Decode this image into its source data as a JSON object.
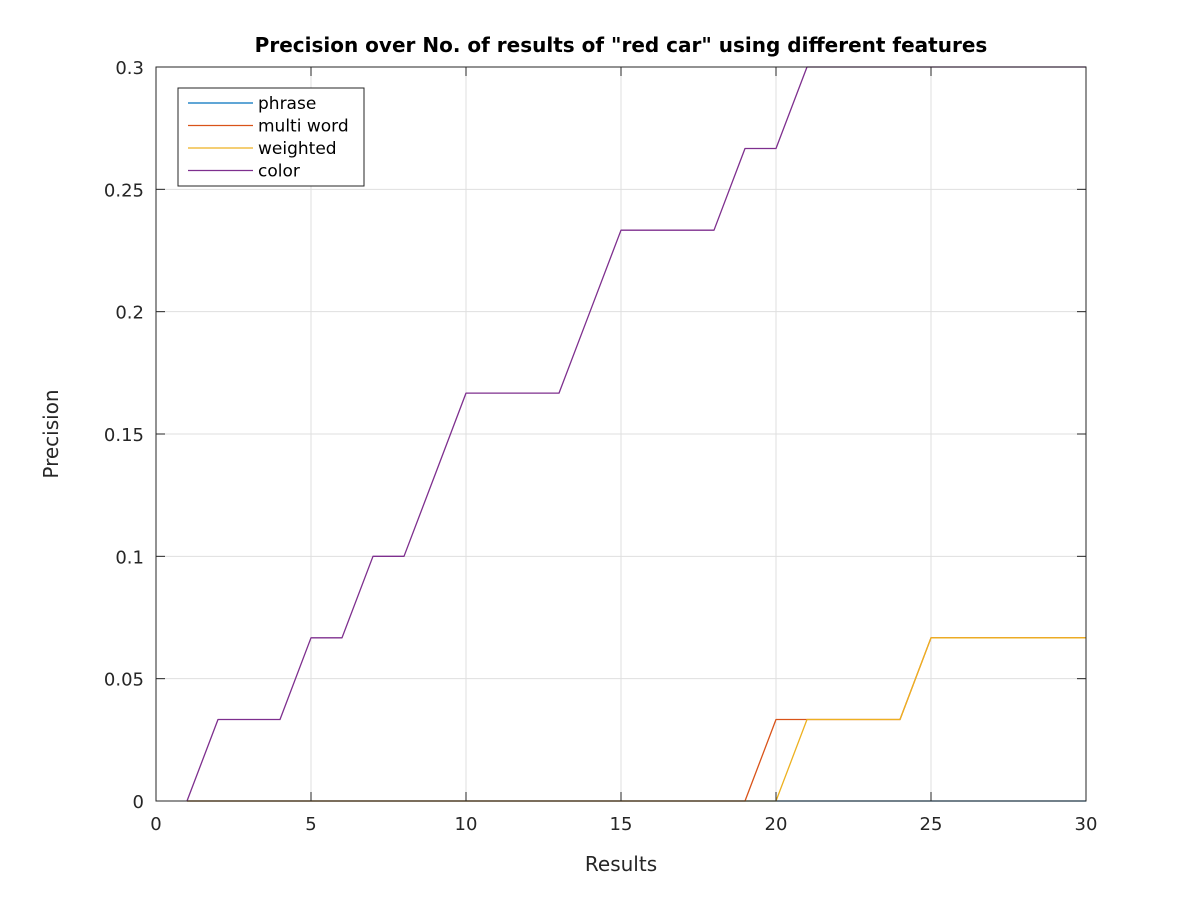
{
  "chart_data": {
    "type": "line",
    "title": "Precision over No. of results of \"red car\" using different features",
    "xlabel": "Results",
    "ylabel": "Precision",
    "xlim": [
      0,
      30
    ],
    "ylim": [
      0,
      0.3
    ],
    "xticks": [
      0,
      5,
      10,
      15,
      20,
      25,
      30
    ],
    "xtick_labels": [
      "0",
      "5",
      "10",
      "15",
      "20",
      "25",
      "30"
    ],
    "yticks": [
      0,
      0.05,
      0.1,
      0.15,
      0.2,
      0.25,
      0.3
    ],
    "ytick_labels": [
      "0",
      "0.05",
      "0.1",
      "0.15",
      "0.2",
      "0.25",
      "0.3"
    ],
    "grid": true,
    "legend_position": "top-left",
    "x": [
      1,
      2,
      3,
      4,
      5,
      6,
      7,
      8,
      9,
      10,
      11,
      12,
      13,
      14,
      15,
      16,
      17,
      18,
      19,
      20,
      21,
      22,
      23,
      24,
      25,
      26,
      27,
      28,
      29,
      30
    ],
    "series": [
      {
        "name": "phrase",
        "color": "#0072bd",
        "values": [
          0,
          0,
          0,
          0,
          0,
          0,
          0,
          0,
          0,
          0,
          0,
          0,
          0,
          0,
          0,
          0,
          0,
          0,
          0,
          0,
          0,
          0,
          0,
          0,
          0,
          0,
          0,
          0,
          0,
          0
        ]
      },
      {
        "name": "multi word",
        "color": "#d95319",
        "values": [
          0,
          0,
          0,
          0,
          0,
          0,
          0,
          0,
          0,
          0,
          0,
          0,
          0,
          0,
          0,
          0,
          0,
          0,
          0,
          0.0333,
          0.0333,
          0.0333,
          0.0333,
          0.0333,
          0.0667,
          0.0667,
          0.0667,
          0.0667,
          0.0667,
          0.0667
        ]
      },
      {
        "name": "weighted",
        "color": "#edb120",
        "values": [
          0,
          0,
          0,
          0,
          0,
          0,
          0,
          0,
          0,
          0,
          0,
          0,
          0,
          0,
          0,
          0,
          0,
          0,
          0,
          0,
          0.0333,
          0.0333,
          0.0333,
          0.0333,
          0.0667,
          0.0667,
          0.0667,
          0.0667,
          0.0667,
          0.0667
        ]
      },
      {
        "name": "color",
        "color": "#7e2f8e",
        "values": [
          0,
          0.0333,
          0.0333,
          0.0333,
          0.0667,
          0.0667,
          0.1,
          0.1,
          0.1333,
          0.1667,
          0.1667,
          0.1667,
          0.1667,
          0.2,
          0.2333,
          0.2333,
          0.2333,
          0.2333,
          0.2667,
          0.2667,
          0.3,
          0.3,
          0.3,
          0.3,
          0.3,
          0.3,
          0.3,
          0.3,
          0.3,
          0.3
        ]
      }
    ]
  }
}
